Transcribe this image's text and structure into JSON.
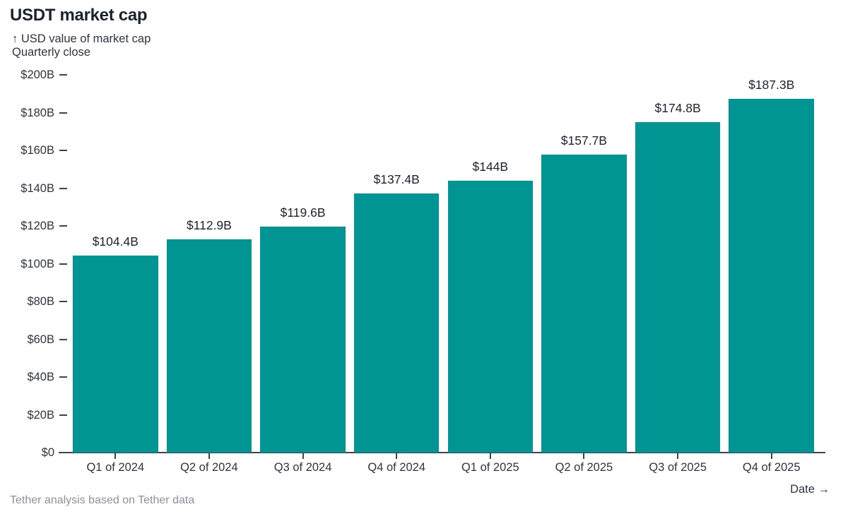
{
  "header": {
    "title": "USDT market cap",
    "subtitle_line1": "↑ USD value of market cap",
    "subtitle_line2": "Quarterly close"
  },
  "footer": {
    "source": "Tether analysis based on Tether data",
    "date_label": "Date →"
  },
  "colors": {
    "bar": "#009492",
    "title": "#1b2330",
    "text": "#2c3541",
    "axis": "#3c4450",
    "muted": "#8a919c"
  },
  "chart_data": {
    "type": "bar",
    "title": "USDT market cap",
    "ylabel": "USD value of market cap",
    "subtitle": "Quarterly close",
    "xlabel": "Date",
    "categories": [
      "Q1 of 2024",
      "Q2 of 2024",
      "Q3 of 2024",
      "Q4 of 2024",
      "Q1 of 2025",
      "Q2 of 2025",
      "Q3 of 2025",
      "Q4 of 2025"
    ],
    "values": [
      104.4,
      112.9,
      119.6,
      137.4,
      144,
      157.7,
      174.8,
      187.3
    ],
    "value_labels": [
      "$104.4B",
      "$112.9B",
      "$119.6B",
      "$137.4B",
      "$144B",
      "$157.7B",
      "$174.8B",
      "$187.3B"
    ],
    "unit": "USD billions",
    "ylim": [
      0,
      200
    ],
    "yticks": [
      {
        "value": 0,
        "label": "$0"
      },
      {
        "value": 20,
        "label": "$20B"
      },
      {
        "value": 40,
        "label": "$40B"
      },
      {
        "value": 60,
        "label": "$60B"
      },
      {
        "value": 80,
        "label": "$80B"
      },
      {
        "value": 100,
        "label": "$100B"
      },
      {
        "value": 120,
        "label": "$120B"
      },
      {
        "value": 140,
        "label": "$140B"
      },
      {
        "value": 160,
        "label": "$160B"
      },
      {
        "value": 180,
        "label": "$180B"
      },
      {
        "value": 200,
        "label": "$200B"
      }
    ],
    "grid": false,
    "legend": false
  }
}
